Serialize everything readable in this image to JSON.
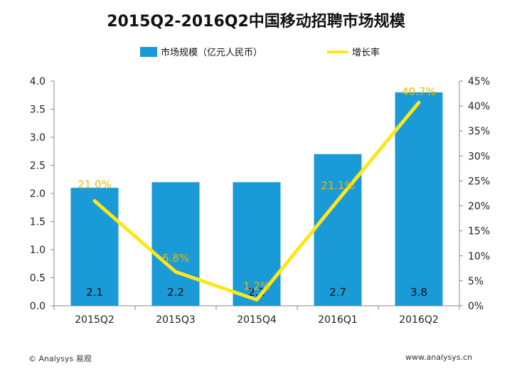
{
  "chart_data": {
    "type": "bar",
    "title": "2015Q2-2016Q2中国移动招聘市场规模",
    "categories": [
      "2015Q2",
      "2015Q3",
      "2015Q4",
      "2016Q1",
      "2016Q2"
    ],
    "series": [
      {
        "name": "市场规模（亿元人民币）",
        "type": "bar",
        "values": [
          2.1,
          2.2,
          2.2,
          2.7,
          3.8
        ],
        "labels": [
          "2.1",
          "2.2",
          "2.2",
          "2.7",
          "3.8"
        ],
        "color": "#1a9ad6",
        "axis": "left"
      },
      {
        "name": "增长率",
        "type": "line",
        "values": [
          21.0,
          6.8,
          1.2,
          21.1,
          40.7
        ],
        "labels": [
          "21.0%",
          "6.8%",
          "1.2%",
          "21.1%",
          "40.7%"
        ],
        "color": "#ffe61a",
        "axis": "right"
      }
    ],
    "y_left": {
      "min": 0,
      "max": 4.0,
      "step": 0.5,
      "ticks": [
        "0.0",
        "0.5",
        "1.0",
        "1.5",
        "2.0",
        "2.5",
        "3.0",
        "3.5",
        "4.0"
      ]
    },
    "y_right": {
      "min": 0,
      "max": 45,
      "step": 5,
      "ticks": [
        "0%",
        "5%",
        "10%",
        "15%",
        "20%",
        "25%",
        "30%",
        "35%",
        "40%",
        "45%"
      ]
    },
    "legend_position": "top",
    "grid": false
  },
  "footer": {
    "left": "© Analysys 易观",
    "right": "www.analysys.cn"
  },
  "colors": {
    "label_gold": "#e8b800"
  }
}
